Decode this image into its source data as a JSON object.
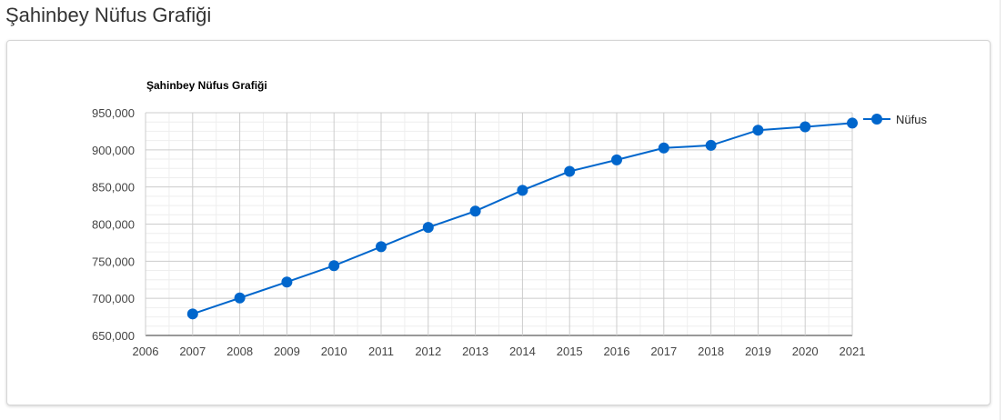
{
  "page": {
    "title": "Şahinbey Nüfus Grafiği"
  },
  "chart_data": {
    "type": "line",
    "title": "Şahinbey Nüfus Grafiği",
    "xlabel": "",
    "ylabel": "",
    "xlim": [
      2006,
      2021
    ],
    "ylim": [
      650000,
      950000
    ],
    "x_ticks": [
      "2006",
      "2007",
      "2008",
      "2009",
      "2010",
      "2011",
      "2012",
      "2013",
      "2014",
      "2015",
      "2016",
      "2017",
      "2018",
      "2019",
      "2020",
      "2021"
    ],
    "y_ticks": [
      "650,000",
      "700,000",
      "750,000",
      "800,000",
      "850,000",
      "900,000",
      "950,000"
    ],
    "grid": true,
    "legend_position": "right",
    "series": [
      {
        "name": "Nüfus",
        "color": "#0066cc",
        "x": [
          2007,
          2008,
          2009,
          2010,
          2011,
          2012,
          2013,
          2014,
          2015,
          2016,
          2017,
          2018,
          2019,
          2020,
          2021
        ],
        "values": [
          679000,
          700500,
          722000,
          744000,
          769500,
          795500,
          817500,
          845500,
          871000,
          886500,
          902500,
          906000,
          926500,
          931000,
          936000
        ]
      }
    ]
  }
}
